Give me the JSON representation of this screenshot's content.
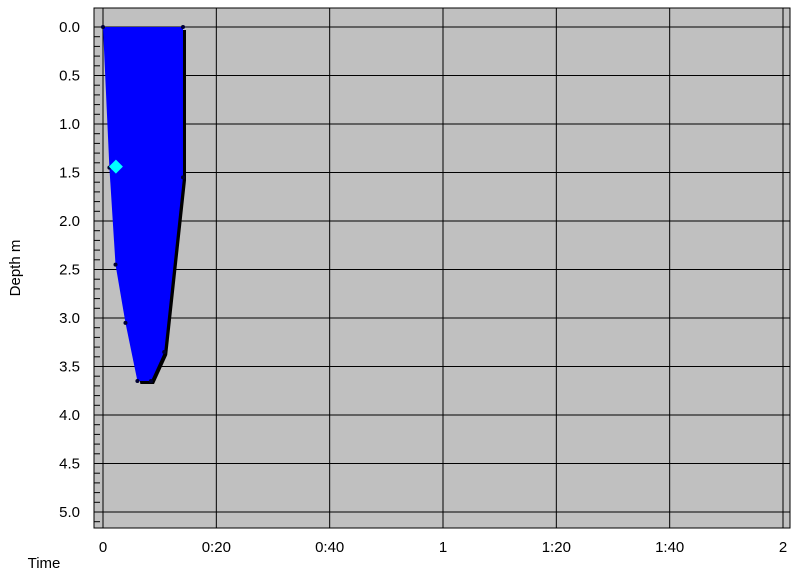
{
  "chart_data": {
    "type": "area",
    "title": "",
    "xlabel": "Time",
    "ylabel": "Depth m",
    "x_unit": "hours (h:mm)",
    "xlim": [
      0,
      2
    ],
    "ylim": [
      5.0,
      0.0
    ],
    "y_inverted": true,
    "grid": true,
    "legend": "none",
    "x_ticks": [
      {
        "value": 0,
        "label": "0"
      },
      {
        "value": 0.3333,
        "label": "0:20"
      },
      {
        "value": 0.6667,
        "label": "0:40"
      },
      {
        "value": 1,
        "label": "1"
      },
      {
        "value": 1.3333,
        "label": "1:20"
      },
      {
        "value": 1.6667,
        "label": "1:40"
      },
      {
        "value": 2,
        "label": "2"
      }
    ],
    "y_ticks": [
      {
        "value": 0.0,
        "label": "0.0"
      },
      {
        "value": 0.5,
        "label": "0.5"
      },
      {
        "value": 1.0,
        "label": "1.0"
      },
      {
        "value": 1.5,
        "label": "1.5"
      },
      {
        "value": 2.0,
        "label": "2.0"
      },
      {
        "value": 2.5,
        "label": "2.5"
      },
      {
        "value": 3.0,
        "label": "3.0"
      },
      {
        "value": 3.5,
        "label": "3.5"
      },
      {
        "value": 4.0,
        "label": "4.0"
      },
      {
        "value": 4.5,
        "label": "4.5"
      },
      {
        "value": 5.0,
        "label": "5.0"
      }
    ],
    "series": [
      {
        "kind": "profile",
        "points": [
          {
            "x": 0.0,
            "y": 0.0
          },
          {
            "x": 0.0188,
            "y": 1.45
          },
          {
            "x": 0.0368,
            "y": 2.45
          },
          {
            "x": 0.0661,
            "y": 3.05
          },
          {
            "x": 0.1012,
            "y": 3.65
          },
          {
            "x": 0.1412,
            "y": 3.65
          },
          {
            "x": 0.18,
            "y": 3.35
          },
          {
            "x": 0.2353,
            "y": 1.55
          },
          {
            "x": 0.2353,
            "y": 0.0
          }
        ]
      }
    ],
    "markers": [
      {
        "shape": "diamond",
        "x": 0.038,
        "y": 1.44
      }
    ],
    "colors": {
      "plot_background": "#c0c0c0",
      "fill": "#0000ff",
      "shadow": "#000000",
      "grid": "#000000",
      "marker": "#00ffff"
    }
  }
}
